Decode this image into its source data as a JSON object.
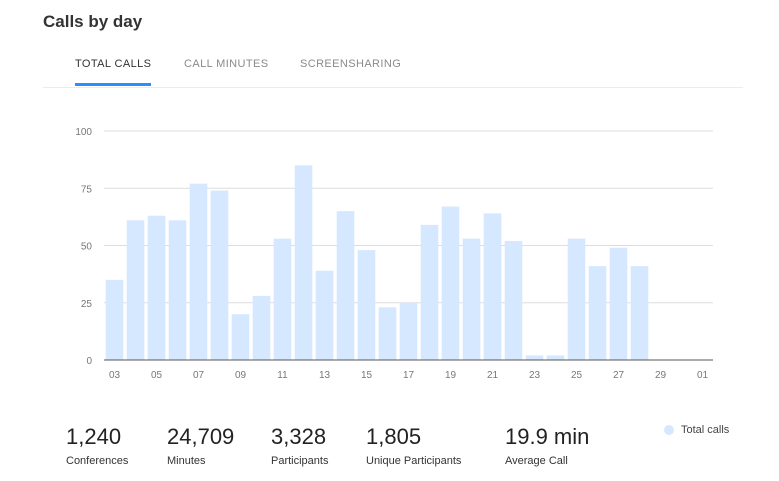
{
  "page": {
    "title": "Calls by day"
  },
  "tabs": [
    {
      "label": "TOTAL CALLS",
      "active": true
    },
    {
      "label": "CALL MINUTES",
      "active": false
    },
    {
      "label": "SCREENSHARING",
      "active": false
    }
  ],
  "chart_data": {
    "type": "bar",
    "title": "",
    "xlabel": "",
    "ylabel": "",
    "ylim": [
      0,
      100
    ],
    "yticks": [
      0,
      25,
      50,
      75,
      100
    ],
    "grid": true,
    "legend_position": "bottom-right",
    "bar_color": "#d5e8ff",
    "categories": [
      "03",
      "04",
      "05",
      "06",
      "07",
      "08",
      "09",
      "10",
      "11",
      "12",
      "13",
      "14",
      "15",
      "16",
      "17",
      "18",
      "19",
      "20",
      "21",
      "22",
      "23",
      "24",
      "25",
      "26",
      "27",
      "28",
      "29",
      "30",
      "01"
    ],
    "tick_labels": [
      "03",
      "05",
      "07",
      "09",
      "11",
      "13",
      "15",
      "17",
      "19",
      "21",
      "23",
      "25",
      "27",
      "29",
      "01"
    ],
    "series": [
      {
        "name": "Total calls",
        "values": [
          35,
          61,
          63,
          61,
          77,
          74,
          20,
          28,
          53,
          85,
          39,
          65,
          48,
          23,
          25,
          59,
          67,
          53,
          64,
          52,
          2,
          2,
          53,
          41,
          49,
          41,
          0,
          0,
          0
        ]
      }
    ]
  },
  "stats": [
    {
      "value": "1,240",
      "label": "Conferences"
    },
    {
      "value": "24,709",
      "label": "Minutes"
    },
    {
      "value": "3,328",
      "label": "Participants"
    },
    {
      "value": "1,805",
      "label": "Unique Participants"
    },
    {
      "value": "19.9 min",
      "label": "Average Call"
    }
  ],
  "legend": {
    "label": "Total calls",
    "color": "#d5e8ff"
  }
}
